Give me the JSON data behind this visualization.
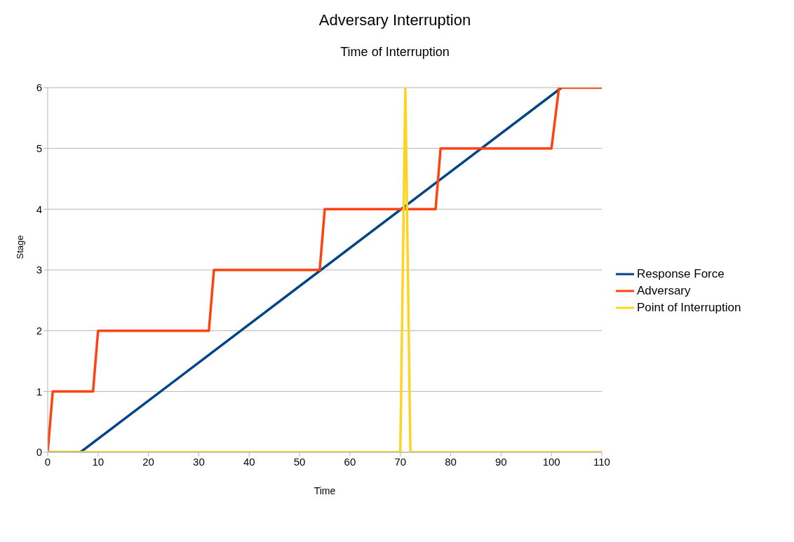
{
  "chart_data": {
    "type": "line",
    "title": "Adversary Interruption",
    "subtitle": "Time of Interruption",
    "xlabel": "Time",
    "ylabel": "Stage",
    "series": [
      {
        "name": "Response Force",
        "color": "#004586",
        "x": [
          0,
          6.5,
          102
        ],
        "values": [
          0,
          0,
          6
        ]
      },
      {
        "name": "Adversary",
        "color": "#ff420e",
        "x": [
          0,
          1,
          9,
          10,
          32,
          33,
          54,
          55,
          77,
          78,
          100,
          101.5,
          110
        ],
        "values": [
          0,
          1,
          1,
          2,
          2,
          3,
          3,
          4,
          4,
          5,
          5,
          6,
          6
        ]
      },
      {
        "name": "Point of Interruption",
        "color": "#ffd320",
        "x": [
          0,
          70,
          71,
          72,
          110
        ],
        "values": [
          0,
          0,
          6,
          0,
          0
        ]
      }
    ],
    "xlim": [
      0,
      110
    ],
    "xticks": [
      0,
      10,
      20,
      30,
      40,
      50,
      60,
      70,
      80,
      90,
      100,
      110
    ],
    "ylim": [
      0,
      6
    ],
    "yticks": [
      0,
      1,
      2,
      3,
      4,
      5,
      6
    ],
    "grid": "y",
    "legend": "right",
    "marker": "none",
    "line_style": "solid"
  }
}
